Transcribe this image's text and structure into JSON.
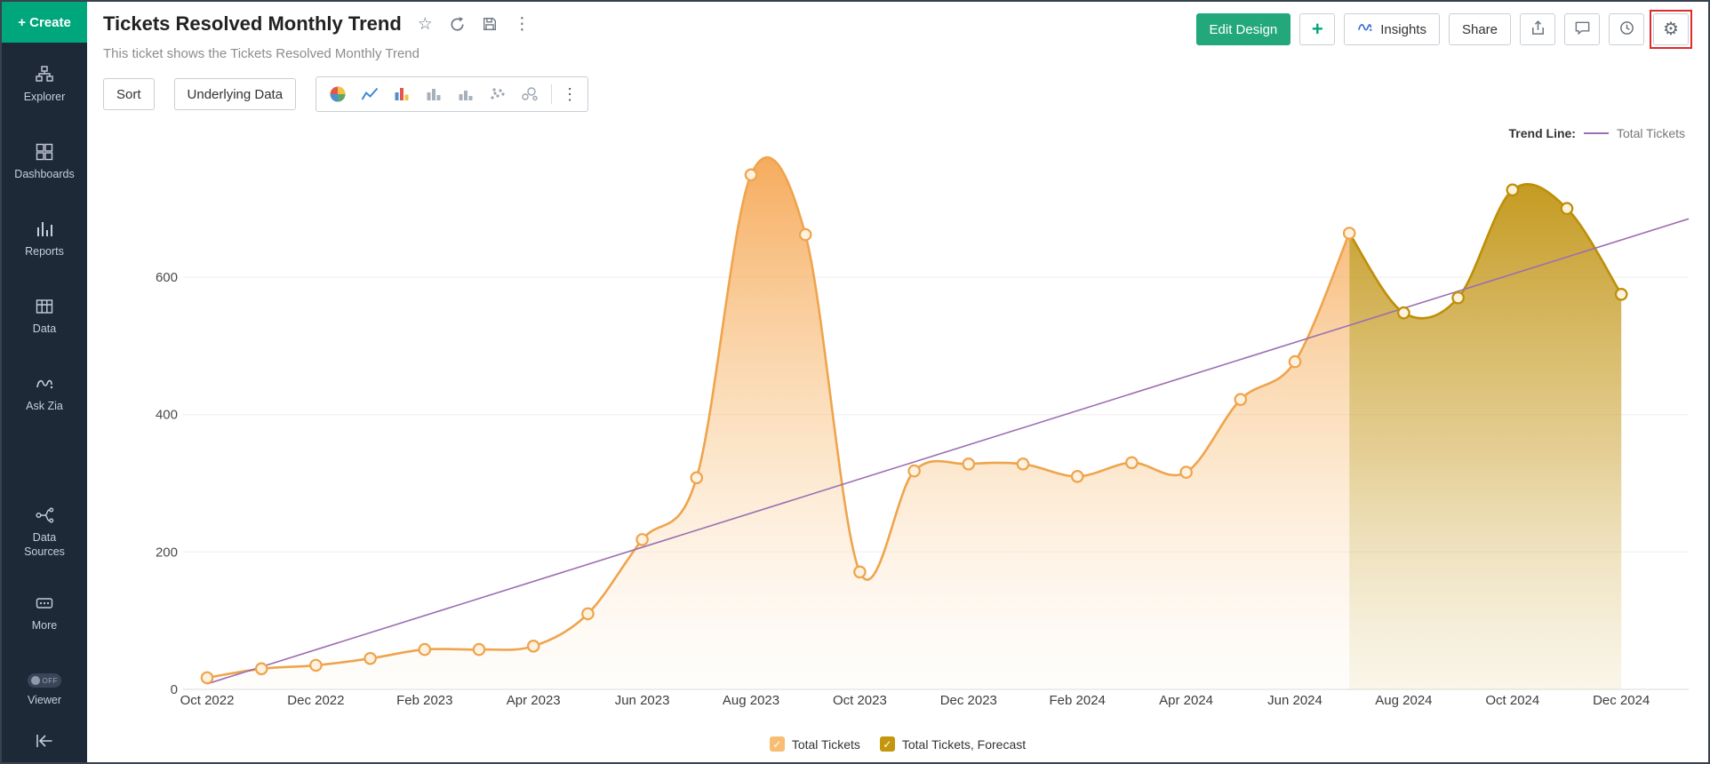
{
  "sidebar": {
    "create_label": "+ Create",
    "viewer_toggle": "OFF",
    "items": [
      {
        "label": "Explorer",
        "icon": "explorer-icon"
      },
      {
        "label": "Dashboards",
        "icon": "dashboards-icon"
      },
      {
        "label": "Reports",
        "icon": "reports-icon"
      },
      {
        "label": "Data",
        "icon": "data-icon"
      },
      {
        "label": "Ask Zia",
        "icon": "zia-icon"
      },
      {
        "label": "Data Sources",
        "icon": "data-sources-icon"
      },
      {
        "label": "More",
        "icon": "more-icon"
      },
      {
        "label": "Viewer",
        "icon": "viewer-toggle"
      }
    ]
  },
  "header": {
    "title": "Tickets Resolved Monthly Trend",
    "subtitle": "This ticket shows the Tickets Resolved Monthly Trend",
    "actions": {
      "edit_design": "Edit Design",
      "add": "+",
      "insights": "Insights",
      "share": "Share"
    }
  },
  "icons": {
    "star": "☆",
    "kebab": "⋮",
    "gear": "⚙"
  },
  "toolbar": {
    "sort": "Sort",
    "underlying_data": "Underlying Data",
    "chart_type_icons": [
      "pie-chart-icon",
      "line-chart-icon",
      "bar-chart-icon",
      "column-chart-gray-icon",
      "column-chart-gray2-icon",
      "scatter-chart-icon",
      "bubble-chart-icon"
    ]
  },
  "trend_legend": {
    "label": "Trend Line:",
    "series": "Total Tickets"
  },
  "legend": [
    {
      "label": "Total Tickets",
      "color": "#f7bd73"
    },
    {
      "label": "Total Tickets, Forecast",
      "color": "#c5970e"
    }
  ],
  "chart_data": {
    "type": "area",
    "x": [
      "Oct 2022",
      "Nov 2022",
      "Dec 2022",
      "Jan 2023",
      "Feb 2023",
      "Mar 2023",
      "Apr 2023",
      "May 2023",
      "Jun 2023",
      "Jul 2023",
      "Aug 2023",
      "Sep 2023",
      "Oct 2023",
      "Nov 2023",
      "Dec 2023",
      "Jan 2024",
      "Feb 2024",
      "Mar 2024",
      "Apr 2024",
      "May 2024",
      "Jun 2024",
      "Jul 2024",
      "Aug 2024",
      "Sep 2024",
      "Oct 2024",
      "Nov 2024",
      "Dec 2024"
    ],
    "values": [
      17,
      30,
      35,
      45,
      58,
      58,
      63,
      110,
      218,
      308,
      749,
      662,
      171,
      318,
      328,
      328,
      310,
      330,
      316,
      422,
      477,
      664,
      548,
      570,
      727,
      700,
      575
    ],
    "forecast_start_index": 21,
    "series_names": [
      "Total Tickets",
      "Total Tickets, Forecast"
    ],
    "colors": {
      "actual": "#efa44d",
      "forecast": "#bd8f07",
      "point_fill": "#fdf2df"
    },
    "trend_line": {
      "series": "Total Tickets",
      "start_value": 8,
      "end_value": 685,
      "color": "#9b6fb2"
    },
    "yticks": [
      0,
      200,
      400,
      600
    ],
    "ylim": [
      0,
      780
    ],
    "x_tick_every": 2,
    "xlabel": "",
    "ylabel": ""
  }
}
